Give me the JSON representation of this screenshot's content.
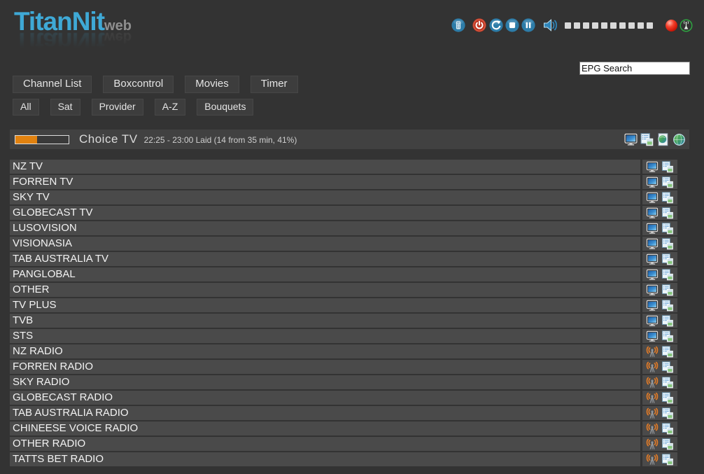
{
  "app": {
    "title": "TitanNit",
    "title_suffix": "web"
  },
  "topbar": {
    "icons": [
      {
        "name": "remote-icon"
      },
      {
        "name": "power-icon"
      },
      {
        "name": "reload-icon"
      },
      {
        "name": "stop-icon"
      },
      {
        "name": "pause-icon"
      },
      {
        "name": "volume-icon"
      },
      {
        "name": "record-indicator"
      },
      {
        "name": "signal-icon"
      }
    ],
    "volume_segments": 10
  },
  "search": {
    "value": "EPG Search"
  },
  "nav": {
    "primary": [
      "Channel List",
      "Boxcontrol",
      "Movies",
      "Timer"
    ],
    "filters": [
      "All",
      "Sat",
      "Provider",
      "A-Z",
      "Bouquets"
    ]
  },
  "now_playing": {
    "channel": "Choice TV",
    "info": "22:25 - 23:00 Laid (14 from 35 min, 41%)",
    "progress_percent": 41,
    "icons": [
      {
        "name": "tv-screen-icon"
      },
      {
        "name": "epg-list-icon"
      },
      {
        "name": "stream-page-icon"
      },
      {
        "name": "web-globe-icon"
      }
    ]
  },
  "colors": {
    "page_background": "#333333",
    "row_background": "#4a4a4a",
    "bar_background": "#414141",
    "accent_orange": "#e2820f",
    "logo_blue": "#3fa9d6",
    "icon_blue": "#2d7ca8",
    "power_red": "#bf3723",
    "record_red": "#e31b0c",
    "signal_green": "#2fa341",
    "radio_orange": "#e07b28"
  },
  "channels": [
    {
      "name": "NZ TV",
      "type": "tv"
    },
    {
      "name": "FORREN TV",
      "type": "tv"
    },
    {
      "name": "SKY TV",
      "type": "tv"
    },
    {
      "name": "GLOBECAST TV",
      "type": "tv"
    },
    {
      "name": "LUSOVISION",
      "type": "tv"
    },
    {
      "name": "VISIONASIA",
      "type": "tv"
    },
    {
      "name": "TAB AUSTRALIA TV",
      "type": "tv"
    },
    {
      "name": "PANGLOBAL",
      "type": "tv"
    },
    {
      "name": "OTHER",
      "type": "tv"
    },
    {
      "name": "TV PLUS",
      "type": "tv"
    },
    {
      "name": "TVB",
      "type": "tv"
    },
    {
      "name": "STS",
      "type": "tv"
    },
    {
      "name": "NZ RADIO",
      "type": "radio"
    },
    {
      "name": "FORREN RADIO",
      "type": "radio"
    },
    {
      "name": "SKY RADIO",
      "type": "radio"
    },
    {
      "name": "GLOBECAST RADIO",
      "type": "radio"
    },
    {
      "name": "TAB AUSTRALIA RADIO",
      "type": "radio"
    },
    {
      "name": "CHINEESE VOICE RADIO",
      "type": "radio"
    },
    {
      "name": "OTHER RADIO",
      "type": "radio"
    },
    {
      "name": "TATTS BET RADIO",
      "type": "radio"
    }
  ]
}
